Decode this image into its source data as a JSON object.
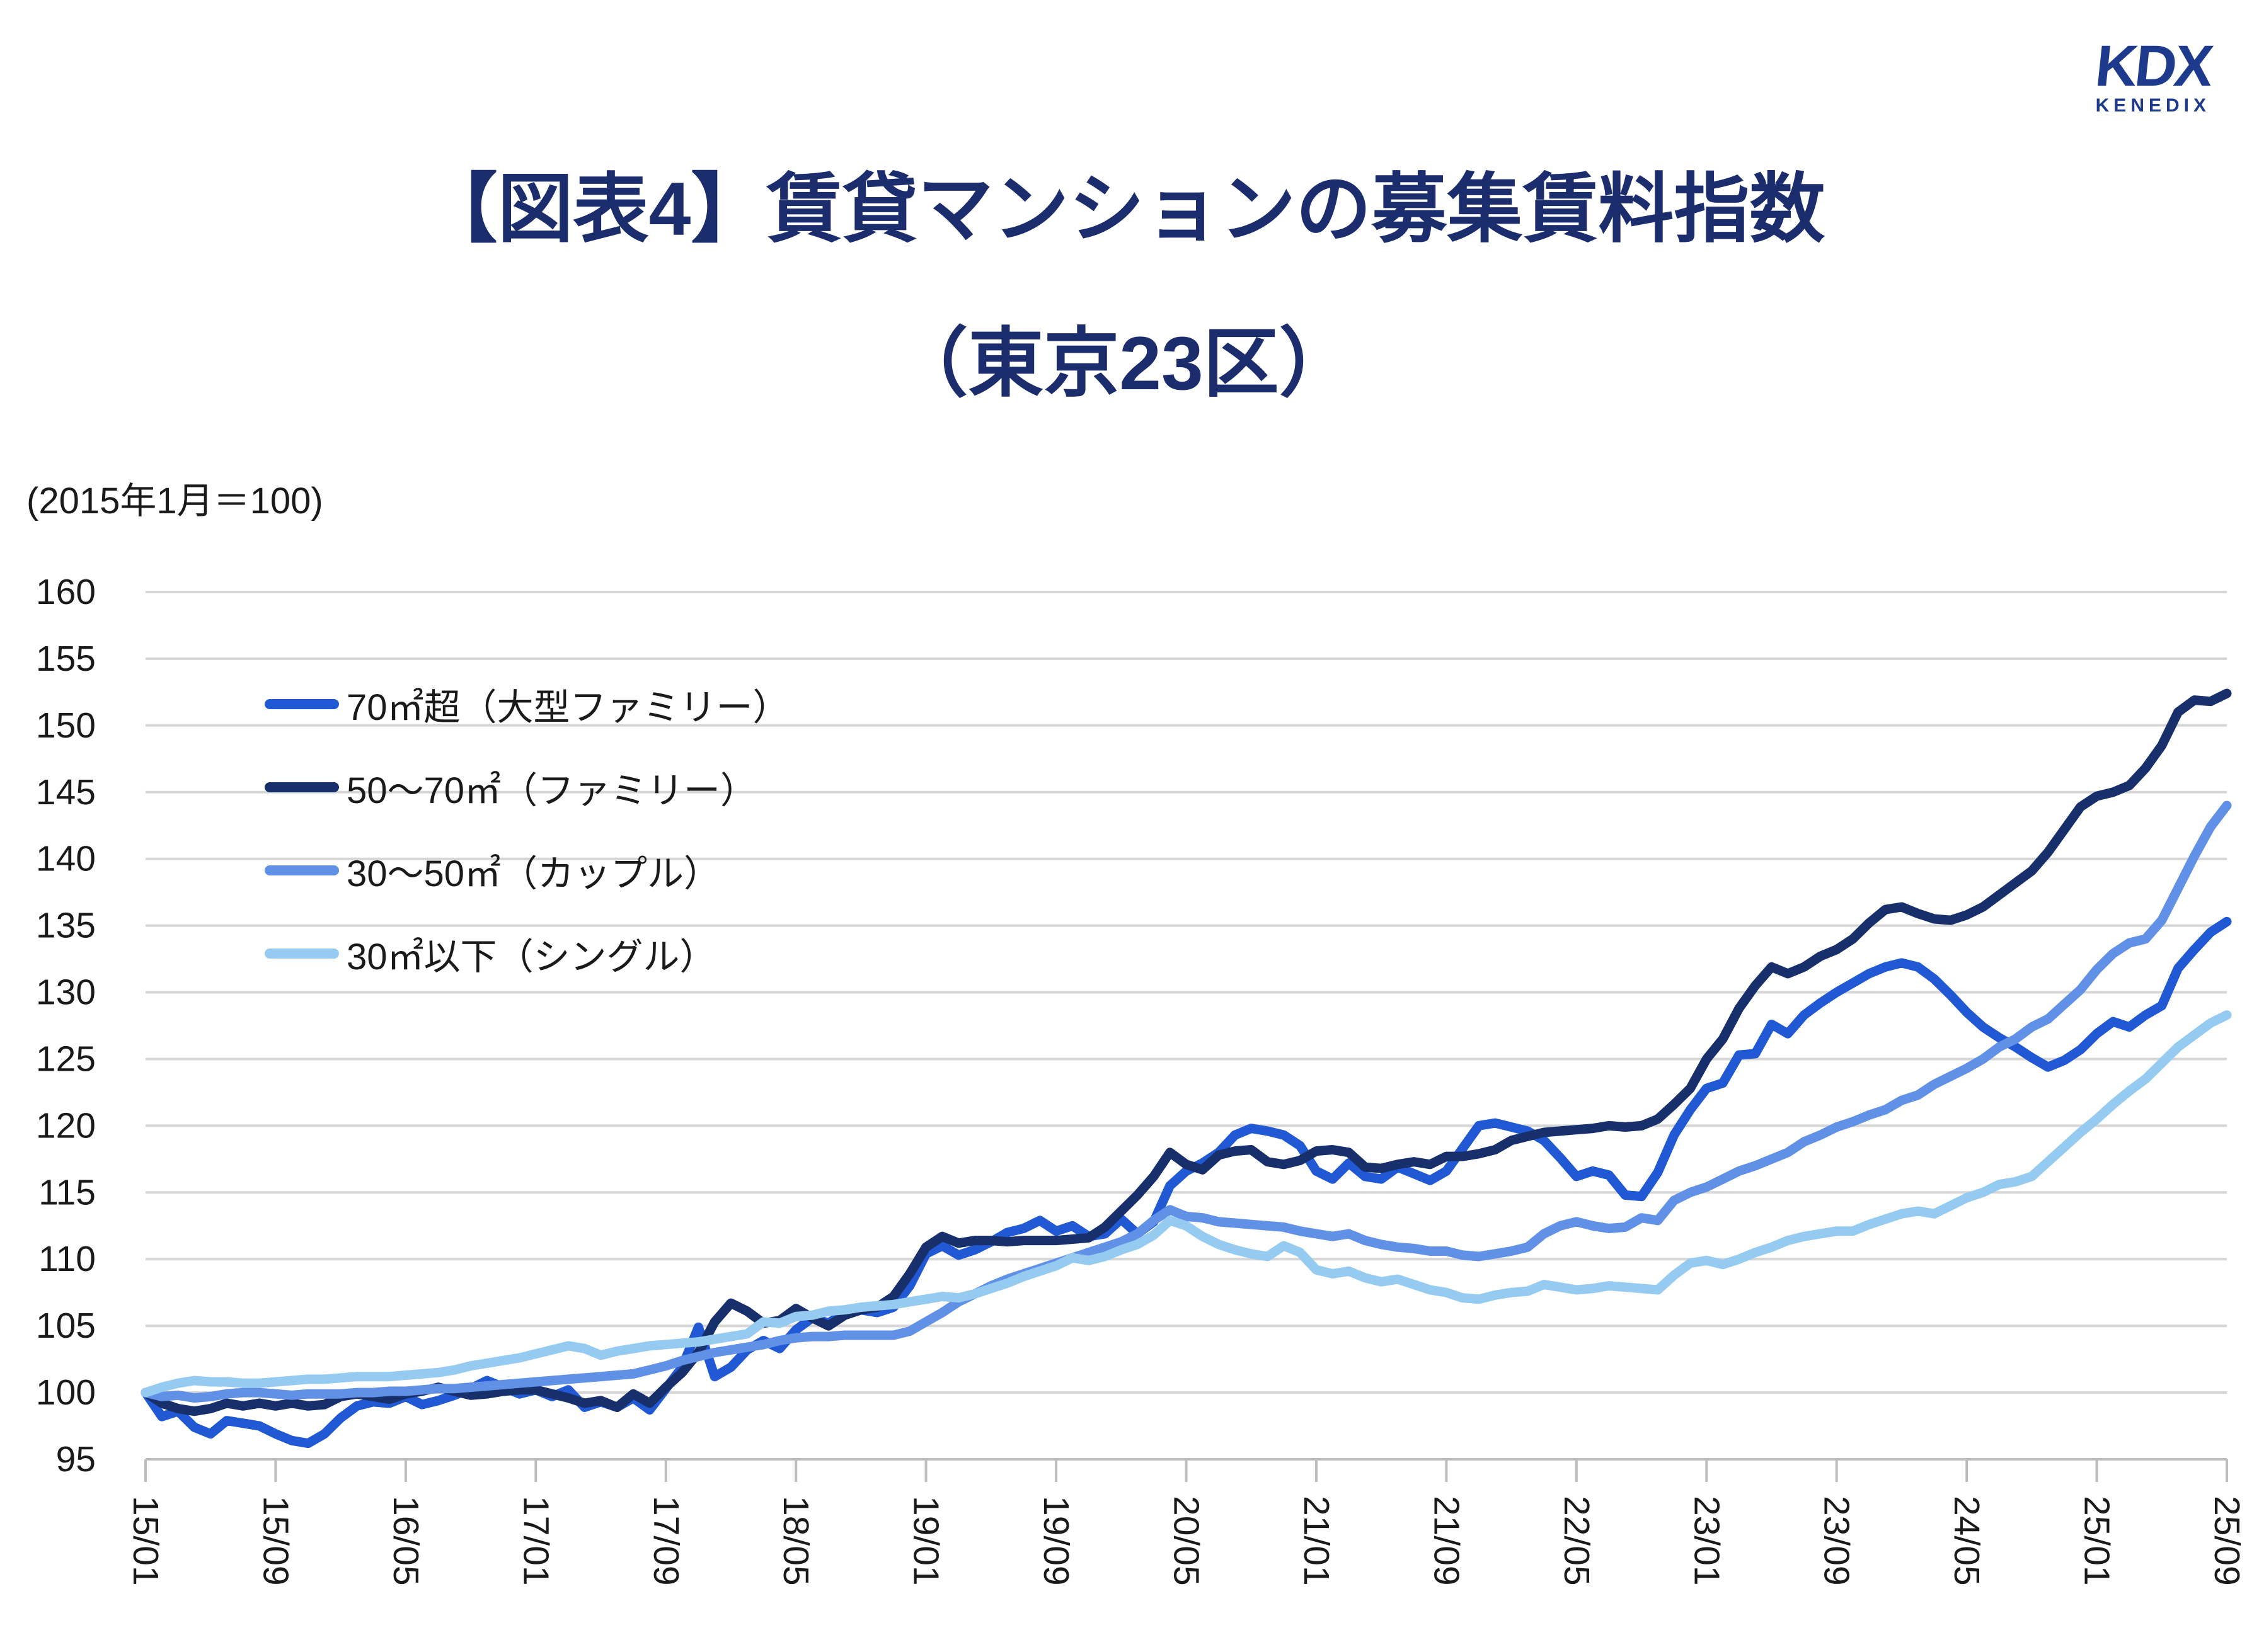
{
  "logo": {
    "text": "KDX",
    "subtext": "KENEDIX",
    "color": "#1E3A8C"
  },
  "title": {
    "line1": "【図表4】賃貸マンションの募集賃料指数",
    "line2": "（東京23区）"
  },
  "note": "(2015年1月＝100)",
  "colors": {
    "title_navy": "#1B2D6C",
    "gridline": "#D6D6D6",
    "axis": "#BDBDBD",
    "label_text": "#1A1A1A"
  },
  "chart_data": {
    "type": "line",
    "title": "賃貸マンションの募集賃料指数（東京23区）",
    "subtitle": "(2015年1月＝100)",
    "ylim": [
      95,
      160
    ],
    "y_ticks": [
      95,
      100,
      105,
      110,
      115,
      120,
      125,
      130,
      135,
      140,
      145,
      150,
      155,
      160
    ],
    "grid": true,
    "legend_position": "upper-left",
    "x_tick_labels": [
      "15/01",
      "15/09",
      "16/05",
      "17/01",
      "17/09",
      "18/05",
      "19/01",
      "19/09",
      "20/05",
      "21/01",
      "21/09",
      "22/05",
      "23/01",
      "23/09",
      "24/05",
      "25/01",
      "25/09"
    ],
    "x": [
      "15/01",
      "15/02",
      "15/03",
      "15/04",
      "15/05",
      "15/06",
      "15/07",
      "15/08",
      "15/09",
      "15/10",
      "15/11",
      "15/12",
      "16/01",
      "16/02",
      "16/03",
      "16/04",
      "16/05",
      "16/06",
      "16/07",
      "16/08",
      "16/09",
      "16/10",
      "16/11",
      "16/12",
      "17/01",
      "17/02",
      "17/03",
      "17/04",
      "17/05",
      "17/06",
      "17/07",
      "17/08",
      "17/09",
      "17/10",
      "17/11",
      "17/12",
      "18/01",
      "18/02",
      "18/03",
      "18/04",
      "18/05",
      "18/06",
      "18/07",
      "18/08",
      "18/09",
      "18/10",
      "18/11",
      "18/12",
      "19/01",
      "19/02",
      "19/03",
      "19/04",
      "19/05",
      "19/06",
      "19/07",
      "19/08",
      "19/09",
      "19/10",
      "19/11",
      "19/12",
      "20/01",
      "20/02",
      "20/03",
      "20/04",
      "20/05",
      "20/06",
      "20/07",
      "20/08",
      "20/09",
      "20/10",
      "20/11",
      "20/12",
      "21/01",
      "21/02",
      "21/03",
      "21/04",
      "21/05",
      "21/06",
      "21/07",
      "21/08",
      "21/09",
      "21/10",
      "21/11",
      "21/12",
      "22/01",
      "22/02",
      "22/03",
      "22/04",
      "22/05",
      "22/06",
      "22/07",
      "22/08",
      "22/09",
      "22/10",
      "22/11",
      "22/12",
      "23/01",
      "23/02",
      "23/03",
      "23/04",
      "23/05",
      "23/06",
      "23/07",
      "23/08",
      "23/09",
      "23/10",
      "23/11",
      "23/12",
      "24/01",
      "24/02",
      "24/03",
      "24/04",
      "24/05",
      "24/06",
      "24/07",
      "24/08",
      "24/09",
      "24/10",
      "24/11",
      "24/12",
      "25/01",
      "25/02",
      "25/03",
      "25/04",
      "25/05",
      "25/06",
      "25/07",
      "25/08",
      "25/09"
    ],
    "series": [
      {
        "key": "over-70",
        "name": "70㎡超（大型ファミリー）",
        "color": "#2158D3",
        "values": [
          100,
          98.2,
          98.6,
          97.4,
          96.9,
          97.9,
          97.7,
          97.5,
          96.9,
          96.4,
          96.2,
          96.9,
          98.1,
          99.0,
          99.3,
          99.2,
          99.7,
          99.1,
          99.4,
          99.8,
          100.3,
          100.9,
          100.4,
          99.9,
          100.2,
          99.7,
          100.2,
          98.9,
          99.3,
          98.9,
          99.6,
          98.7,
          100.3,
          101.9,
          104.9,
          101.2,
          101.9,
          103.2,
          103.9,
          103.3,
          104.7,
          105.6,
          105.2,
          106.0,
          106.2,
          106.0,
          106.4,
          108.0,
          110.4,
          111.0,
          110.3,
          110.7,
          111.3,
          112.0,
          112.3,
          112.9,
          112.1,
          112.5,
          111.7,
          111.9,
          113.0,
          111.9,
          112.8,
          115.5,
          116.6,
          117.2,
          118.0,
          119.3,
          119.8,
          119.6,
          119.3,
          118.5,
          116.6,
          116.0,
          117.2,
          116.2,
          116.0,
          116.9,
          116.4,
          115.9,
          116.6,
          118.3,
          120.0,
          120.2,
          119.9,
          119.6,
          118.9,
          117.6,
          116.2,
          116.6,
          116.3,
          114.8,
          114.7,
          116.5,
          119.3,
          121.2,
          122.8,
          123.2,
          125.3,
          125.4,
          127.6,
          126.9,
          128.3,
          129.2,
          130.0,
          130.7,
          131.4,
          131.9,
          132.2,
          131.9,
          131.0,
          129.8,
          128.5,
          127.4,
          126.6,
          125.9,
          125.1,
          124.4,
          124.9,
          125.7,
          126.9,
          127.8,
          127.4,
          128.3,
          129.0,
          131.8,
          133.2,
          134.5,
          135.3
        ]
      },
      {
        "key": "50-70",
        "name": "50〜70㎡（ファミリー）",
        "color": "#172F6B",
        "values": [
          100,
          99.2,
          98.8,
          98.6,
          98.8,
          99.2,
          99.0,
          99.2,
          99.0,
          99.2,
          99.0,
          99.1,
          99.7,
          99.9,
          99.7,
          99.5,
          99.9,
          100.1,
          100.4,
          100.1,
          99.8,
          99.9,
          100.1,
          100.2,
          100.2,
          99.9,
          99.6,
          99.2,
          99.4,
          98.9,
          99.9,
          99.2,
          100.4,
          101.5,
          103.0,
          105.3,
          106.7,
          106.1,
          105.2,
          105.4,
          106.3,
          105.6,
          105.0,
          105.8,
          106.2,
          106.4,
          107.2,
          108.9,
          110.9,
          111.7,
          111.2,
          111.4,
          111.4,
          111.3,
          111.4,
          111.4,
          111.4,
          111.5,
          111.6,
          112.4,
          113.6,
          114.8,
          116.2,
          118.0,
          117.1,
          116.7,
          117.8,
          118.1,
          118.2,
          117.3,
          117.1,
          117.4,
          118.1,
          118.2,
          118.0,
          116.9,
          116.8,
          117.1,
          117.3,
          117.1,
          117.7,
          117.7,
          117.9,
          118.2,
          118.9,
          119.2,
          119.5,
          119.6,
          119.7,
          119.8,
          120.0,
          119.9,
          120.0,
          120.5,
          121.6,
          122.8,
          125.0,
          126.5,
          128.8,
          130.5,
          131.9,
          131.4,
          131.9,
          132.7,
          133.2,
          134.0,
          135.2,
          136.2,
          136.4,
          135.9,
          135.5,
          135.4,
          135.8,
          136.4,
          137.3,
          138.2,
          139.1,
          140.5,
          142.2,
          143.9,
          144.7,
          145.0,
          145.5,
          146.8,
          148.5,
          151.0,
          151.9,
          151.8,
          152.4
        ]
      },
      {
        "key": "30-50",
        "name": "30〜50㎡（カップル）",
        "color": "#6190E7",
        "values": [
          100,
          99.7,
          99.8,
          99.6,
          99.7,
          99.9,
          100.0,
          100.0,
          99.9,
          99.8,
          99.9,
          99.9,
          99.9,
          100.0,
          100.0,
          100.1,
          100.1,
          100.2,
          100.3,
          100.3,
          100.4,
          100.5,
          100.6,
          100.7,
          100.8,
          100.9,
          101.0,
          101.1,
          101.2,
          101.3,
          101.4,
          101.7,
          102.0,
          102.4,
          102.7,
          103.0,
          103.2,
          103.4,
          103.6,
          103.9,
          104.1,
          104.2,
          104.2,
          104.3,
          104.3,
          104.3,
          104.3,
          104.6,
          105.3,
          106.0,
          106.8,
          107.4,
          108.0,
          108.5,
          108.9,
          109.3,
          109.7,
          110.1,
          110.5,
          110.9,
          111.3,
          111.9,
          112.9,
          113.7,
          113.2,
          113.1,
          112.8,
          112.7,
          112.6,
          112.5,
          112.4,
          112.1,
          111.9,
          111.7,
          111.9,
          111.4,
          111.1,
          110.9,
          110.8,
          110.6,
          110.6,
          110.3,
          110.2,
          110.4,
          110.6,
          110.9,
          111.9,
          112.5,
          112.8,
          112.5,
          112.3,
          112.4,
          113.1,
          112.9,
          114.4,
          115.0,
          115.4,
          116.0,
          116.6,
          117.0,
          117.5,
          118.0,
          118.8,
          119.3,
          119.9,
          120.3,
          120.8,
          121.2,
          121.9,
          122.3,
          123.1,
          123.7,
          124.3,
          125.0,
          125.9,
          126.5,
          127.4,
          128.0,
          129.1,
          130.2,
          131.7,
          132.9,
          133.7,
          134.0,
          135.4,
          137.8,
          140.2,
          142.4,
          144.0
        ]
      },
      {
        "key": "under-30",
        "name": "30㎡以下（シングル）",
        "color": "#95CBF1",
        "values": [
          100,
          100.4,
          100.7,
          100.9,
          100.8,
          100.8,
          100.7,
          100.7,
          100.8,
          100.9,
          101.0,
          101.0,
          101.1,
          101.2,
          101.2,
          101.2,
          101.3,
          101.4,
          101.5,
          101.7,
          102.0,
          102.2,
          102.4,
          102.6,
          102.9,
          103.2,
          103.5,
          103.3,
          102.8,
          103.1,
          103.3,
          103.5,
          103.6,
          103.7,
          103.8,
          104.0,
          104.2,
          104.4,
          105.3,
          105.2,
          105.7,
          105.8,
          106.1,
          106.2,
          106.4,
          106.5,
          106.6,
          106.8,
          107.0,
          107.2,
          107.1,
          107.4,
          107.8,
          108.2,
          108.7,
          109.1,
          109.5,
          110.1,
          109.9,
          110.2,
          110.7,
          111.1,
          111.8,
          112.9,
          112.5,
          111.7,
          111.1,
          110.7,
          110.4,
          110.2,
          111.0,
          110.5,
          109.2,
          108.9,
          109.1,
          108.6,
          108.3,
          108.5,
          108.1,
          107.7,
          107.5,
          107.1,
          107.0,
          107.3,
          107.5,
          107.6,
          108.1,
          107.9,
          107.7,
          107.8,
          108.0,
          107.9,
          107.8,
          107.7,
          108.8,
          109.7,
          109.9,
          109.6,
          110.0,
          110.5,
          110.9,
          111.4,
          111.7,
          111.9,
          112.1,
          112.1,
          112.6,
          113.0,
          113.4,
          113.6,
          113.4,
          114.0,
          114.6,
          115.0,
          115.6,
          115.8,
          116.2,
          117.3,
          118.4,
          119.5,
          120.5,
          121.6,
          122.6,
          123.5,
          124.7,
          125.9,
          126.8,
          127.7,
          128.3
        ]
      }
    ]
  }
}
